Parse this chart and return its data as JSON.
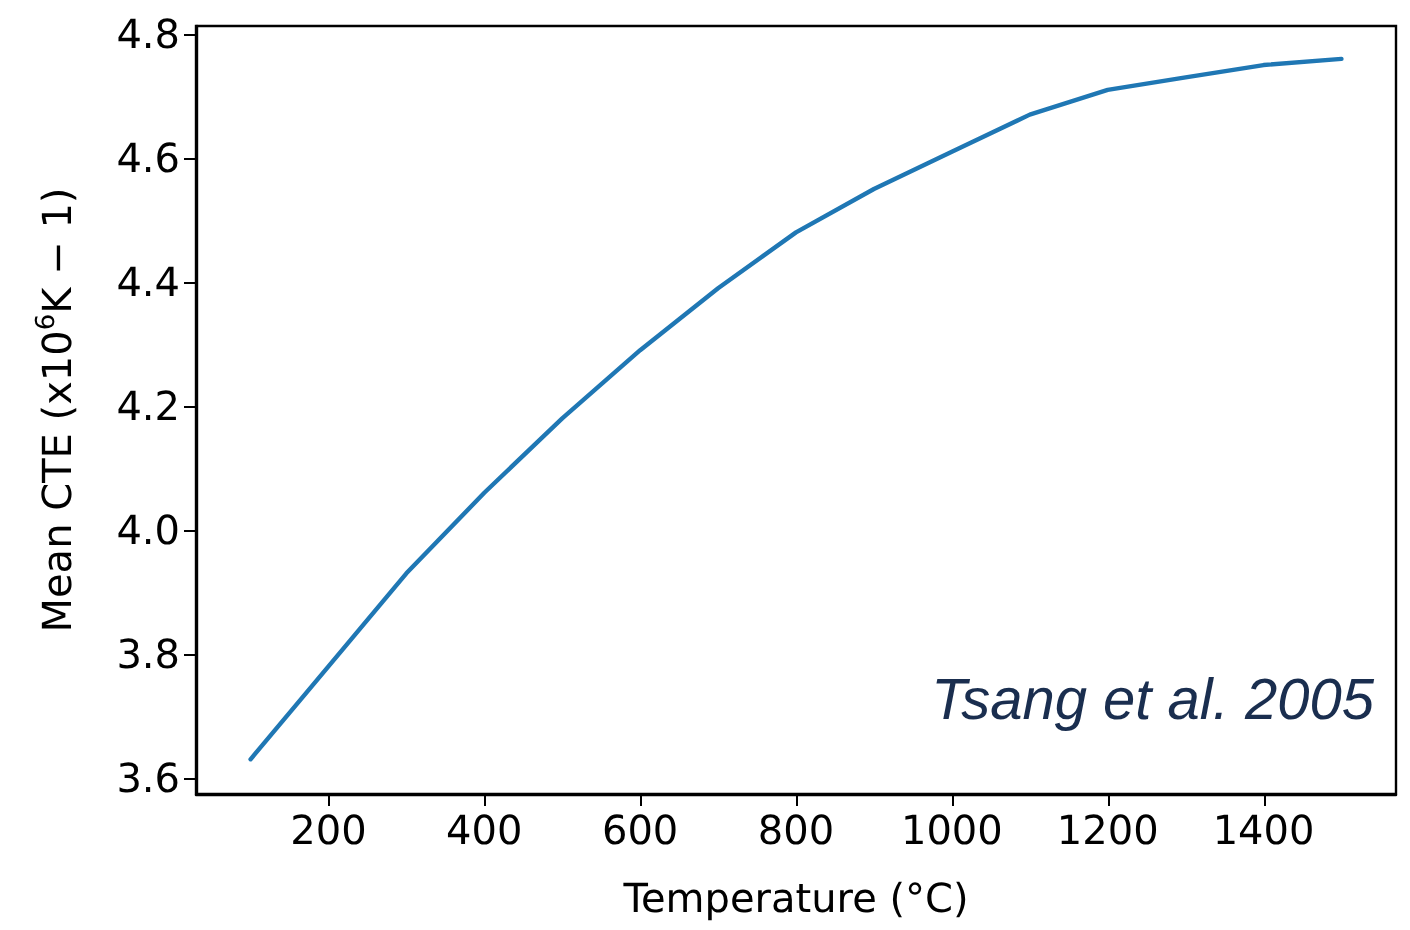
{
  "chart_data": {
    "type": "line",
    "xlabel": "Temperature (°C)",
    "ylabel": "Mean CTE (x10$^{6}$K − 1)",
    "x": [
      100,
      200,
      300,
      400,
      500,
      600,
      700,
      800,
      900,
      1000,
      1100,
      1200,
      1300,
      1400,
      1500
    ],
    "series": [
      {
        "color": "#1f77b4",
        "values": [
          3.63,
          3.78,
          3.93,
          4.06,
          4.18,
          4.29,
          4.39,
          4.48,
          4.55,
          4.61,
          4.67,
          4.71,
          4.73,
          4.75,
          4.76
        ]
      }
    ],
    "xlim": [
      30,
      1570
    ],
    "xticks": [
      200,
      400,
      600,
      800,
      1000,
      1200,
      1400
    ],
    "ylim": [
      3.574,
      4.813
    ],
    "yticks": [
      3.6,
      3.8,
      {
        "value": 4,
        "label": "4.0"
      },
      4.2,
      4.4,
      4.6,
      4.8
    ],
    "annotations": [
      "Tsang et al. 2005"
    ],
    "grid": false,
    "marker": "none",
    "line_style": "solid"
  }
}
